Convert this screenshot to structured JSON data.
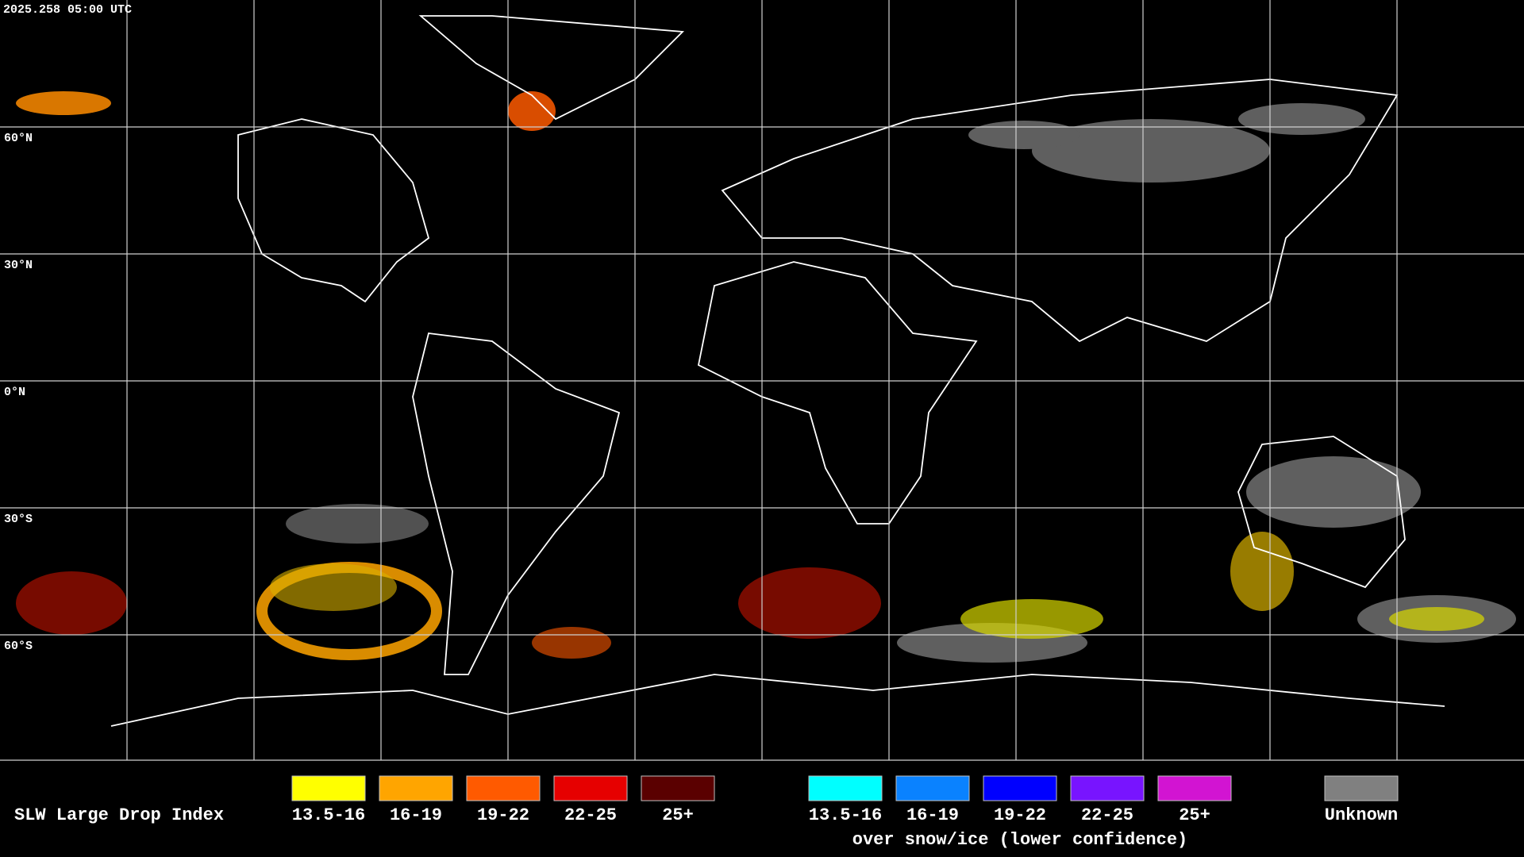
{
  "timestamp": "2025.258 05:00 UTC",
  "map": {
    "ylim": [
      -90,
      90
    ],
    "lat_lines": [
      {
        "value": 60,
        "label": "60°N"
      },
      {
        "value": 30,
        "label": "30°N"
      },
      {
        "value": 0,
        "label": "0°N"
      },
      {
        "value": -30,
        "label": "30°S"
      },
      {
        "value": -60,
        "label": "60°S"
      }
    ]
  },
  "legend": {
    "title": "SLW Large Drop Index",
    "groups": [
      {
        "items": [
          {
            "label": "13.5-16",
            "color": "#ffff00"
          },
          {
            "label": "16-19",
            "color": "#ffa500"
          },
          {
            "label": "19-22",
            "color": "#ff5a00"
          },
          {
            "label": "22-25",
            "color": "#e60000"
          },
          {
            "label": "25+",
            "color": "#5a0000"
          }
        ]
      },
      {
        "subtitle": "over snow/ice (lower confidence)",
        "items": [
          {
            "label": "13.5-16",
            "color": "#00ffff"
          },
          {
            "label": "16-19",
            "color": "#0a82ff"
          },
          {
            "label": "19-22",
            "color": "#0000ff"
          },
          {
            "label": "22-25",
            "color": "#7814ff"
          },
          {
            "label": "25+",
            "color": "#d214d2"
          }
        ]
      },
      {
        "items": [
          {
            "label": "Unknown",
            "color": "#808080"
          }
        ]
      }
    ]
  }
}
